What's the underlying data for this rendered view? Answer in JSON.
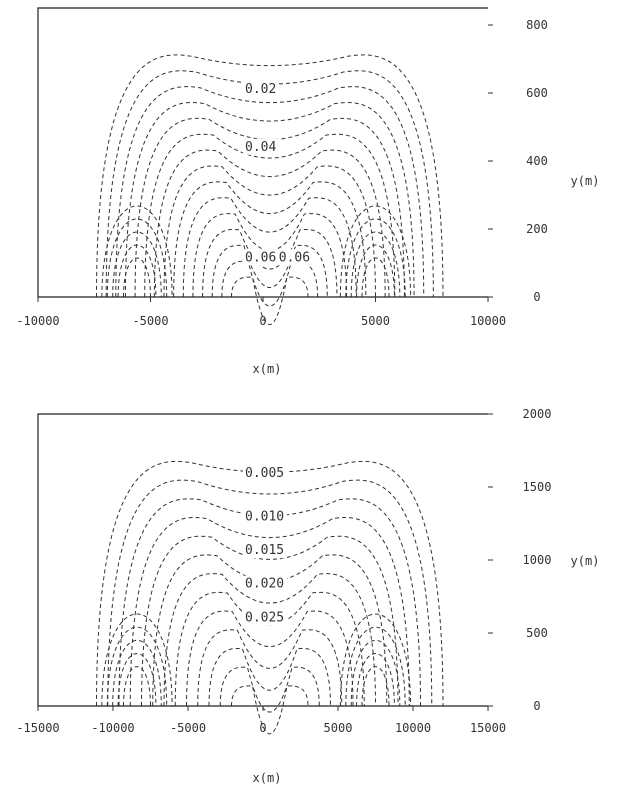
{
  "chart_data": [
    {
      "type": "contour",
      "xlabel": "x(m)",
      "ylabel": "y(m)",
      "xlim": [
        -10000,
        10000
      ],
      "ylim": [
        0,
        850
      ],
      "x_ticks": [
        "-10000",
        "-5000",
        "0",
        "5000",
        "10000"
      ],
      "x_tick_values": [
        -10000,
        -5000,
        0,
        5000,
        10000
      ],
      "y_ticks": [
        "0",
        "200",
        "400",
        "600",
        "800"
      ],
      "y_tick_values": [
        0,
        200,
        400,
        600,
        800
      ],
      "contour_labels": [
        {
          "text": "0.02",
          "x": -800,
          "y": 600
        },
        {
          "text": "0.04",
          "x": -800,
          "y": 430
        },
        {
          "text": "0.06",
          "x": -800,
          "y": 105
        },
        {
          "text": "0.06",
          "x": 700,
          "y": 105
        }
      ],
      "contour_levels": [
        0.01,
        0.02,
        0.03,
        0.04,
        0.05,
        0.06
      ]
    },
    {
      "type": "contour",
      "xlabel": "x(m)",
      "ylabel": "y(m)",
      "xlim": [
        -15000,
        15000
      ],
      "ylim": [
        0,
        2000
      ],
      "x_ticks": [
        "-15000",
        "-10000",
        "-5000",
        "0",
        "5000",
        "10000",
        "15000"
      ],
      "x_tick_values": [
        -15000,
        -10000,
        -5000,
        0,
        5000,
        10000,
        15000
      ],
      "y_ticks": [
        "0",
        "500",
        "1000",
        "1500",
        "2000"
      ],
      "y_tick_values": [
        0,
        500,
        1000,
        1500,
        2000
      ],
      "contour_labels": [
        {
          "text": "0.005",
          "x": -1200,
          "y": 1570
        },
        {
          "text": "0.010",
          "x": -1200,
          "y": 1270
        },
        {
          "text": "0.015",
          "x": -1200,
          "y": 1040
        },
        {
          "text": "0.020",
          "x": -1200,
          "y": 810
        },
        {
          "text": "0.025",
          "x": -1200,
          "y": 580
        }
      ],
      "contour_levels": [
        0.005,
        0.01,
        0.015,
        0.02,
        0.025
      ]
    }
  ]
}
